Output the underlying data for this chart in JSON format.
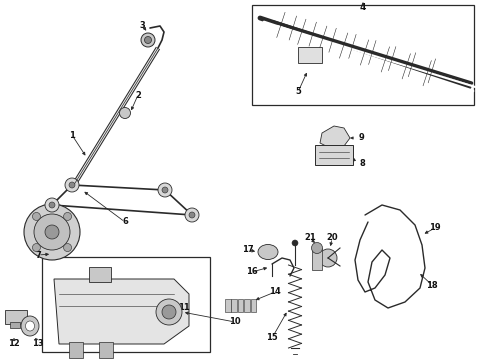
{
  "bg_color": "#ffffff",
  "line_color": "#2a2a2a",
  "label_color": "#111111",
  "figsize": [
    4.89,
    3.6
  ],
  "dpi": 100,
  "xlim": [
    0,
    4.89
  ],
  "ylim": [
    0,
    3.6
  ]
}
